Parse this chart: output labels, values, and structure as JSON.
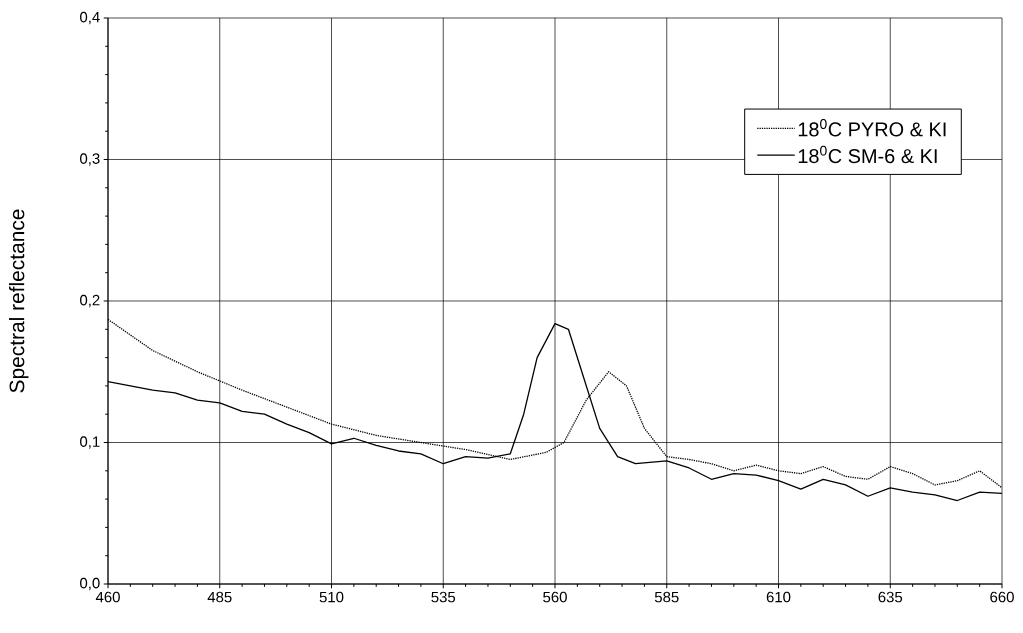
{
  "chart_data": {
    "type": "line",
    "ylabel": "Spectral reflectance",
    "xlim": [
      460,
      660
    ],
    "xticks": [
      460,
      485,
      510,
      535,
      560,
      585,
      610,
      635,
      660
    ],
    "ylim": [
      0,
      0.4
    ],
    "yticks": [
      {
        "value": 0,
        "label": "0,0"
      },
      {
        "value": 0.1,
        "label": "0,1"
      },
      {
        "value": 0.2,
        "label": "0,2"
      },
      {
        "value": 0.3,
        "label": "0,3"
      },
      {
        "value": 0.4,
        "label": "0,4"
      }
    ],
    "grid": true,
    "legend": "top right",
    "series": [
      {
        "name": "18$^{0}$C PYRO & KI",
        "color": "#000000",
        "line_style": "dotted",
        "x": [
          460,
          470,
          480,
          490,
          500,
          510,
          520,
          530,
          540,
          550,
          558,
          562,
          567,
          572,
          576,
          580,
          585,
          590,
          595,
          600,
          605,
          610,
          615,
          620,
          625,
          630,
          635,
          640,
          645,
          650,
          655,
          660
        ],
        "values": [
          0.187,
          0.165,
          0.15,
          0.137,
          0.125,
          0.113,
          0.105,
          0.1,
          0.095,
          0.088,
          0.093,
          0.1,
          0.13,
          0.15,
          0.14,
          0.11,
          0.09,
          0.088,
          0.085,
          0.08,
          0.084,
          0.08,
          0.078,
          0.083,
          0.076,
          0.074,
          0.083,
          0.078,
          0.07,
          0.073,
          0.08,
          0.068
        ]
      },
      {
        "name": "18$^{0}$C SM-6 & KI",
        "color": "#000000",
        "line_style": "solid",
        "x": [
          460,
          465,
          470,
          475,
          480,
          485,
          490,
          495,
          500,
          505,
          510,
          515,
          520,
          525,
          530,
          535,
          540,
          545,
          550,
          553,
          556,
          560,
          563,
          566,
          570,
          574,
          578,
          585,
          590,
          595,
          600,
          605,
          610,
          615,
          620,
          625,
          630,
          635,
          640,
          645,
          650,
          655,
          660
        ],
        "values": [
          0.143,
          0.14,
          0.137,
          0.135,
          0.13,
          0.128,
          0.122,
          0.12,
          0.113,
          0.107,
          0.099,
          0.103,
          0.098,
          0.094,
          0.092,
          0.085,
          0.09,
          0.089,
          0.092,
          0.12,
          0.16,
          0.184,
          0.18,
          0.15,
          0.11,
          0.09,
          0.085,
          0.087,
          0.082,
          0.074,
          0.078,
          0.077,
          0.073,
          0.067,
          0.074,
          0.07,
          0.062,
          0.068,
          0.065,
          0.063,
          0.059,
          0.065,
          0.064
        ]
      }
    ]
  }
}
